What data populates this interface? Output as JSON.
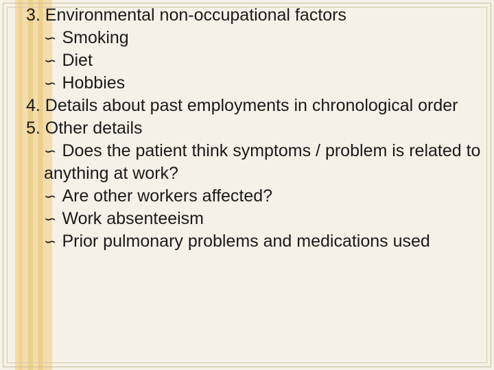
{
  "slide": {
    "background_color": "#f5f1e6",
    "stripe_colors": [
      "#f3d9a4",
      "#f0ce8a",
      "#edc97a"
    ],
    "frame_color": "#cbbd96",
    "text_color": "#1a1a1a",
    "font_size_pt": 19,
    "bullet_glyph": "∽",
    "items": {
      "i3": {
        "heading": "3. Environmental non-occupational factors",
        "subs": {
          "a": "Smoking",
          "b": "Diet",
          "c": "Hobbies"
        }
      },
      "i4": {
        "heading": "4. Details about past employments in chronological order"
      },
      "i5": {
        "heading": "5. Other details",
        "subs": {
          "a": "Does the patient think symptoms / problem is related to anything at work?",
          "b": "Are other workers affected?",
          "c": "Work absenteeism",
          "d": "Prior pulmonary problems and medications used"
        }
      }
    }
  }
}
